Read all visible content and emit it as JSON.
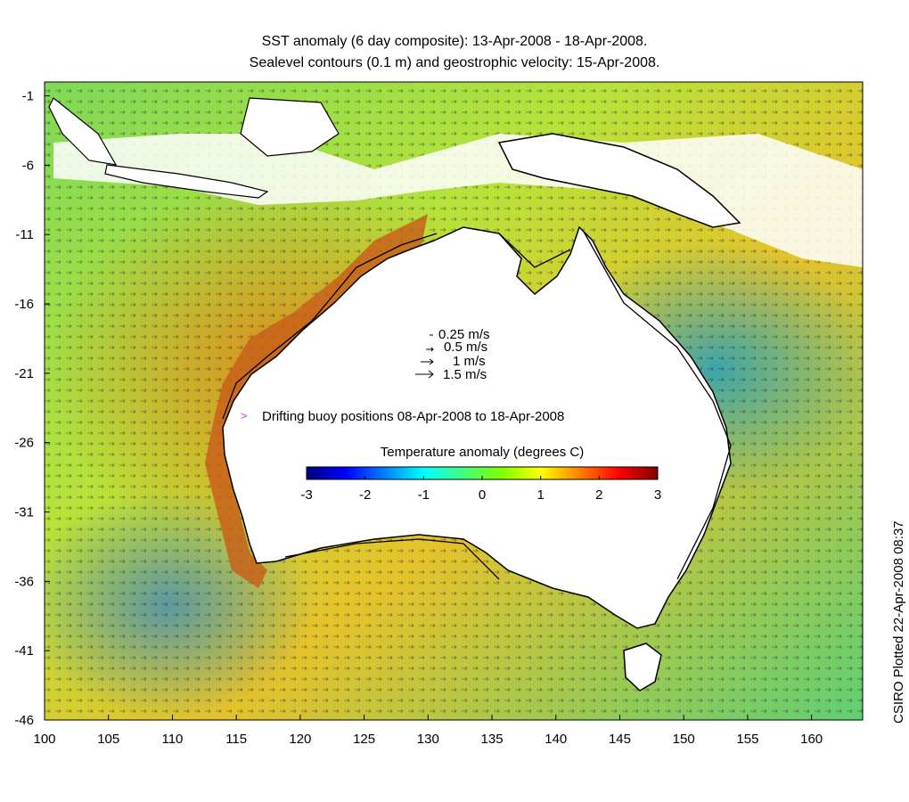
{
  "title": {
    "line1": "SST anomaly (6 day composite): 13-Apr-2008 - 18-Apr-2008.",
    "line2": "Sealevel contours (0.1 m) and geostrophic velocity: 15-Apr-2008."
  },
  "axes": {
    "x_ticks": [
      "100",
      "105",
      "110",
      "115",
      "120",
      "125",
      "130",
      "135",
      "140",
      "145",
      "150",
      "155",
      "160"
    ],
    "y_ticks": [
      "-1",
      "-6",
      "-11",
      "-16",
      "-21",
      "-26",
      "-31",
      "-36",
      "-41",
      "-46"
    ],
    "x_range": [
      100,
      164
    ],
    "y_range": [
      -46,
      0
    ]
  },
  "velocity_legend": [
    {
      "label": "0.25 m/s"
    },
    {
      "label": "0.5 m/s"
    },
    {
      "label": "1 m/s"
    },
    {
      "label": "1.5 m/s"
    }
  ],
  "buoy_legend": {
    "marker": ">",
    "label": "Drifting buoy positions 08-Apr-2008 to 18-Apr-2008",
    "color": "#e040e0"
  },
  "colorbar": {
    "title": "Temperature anomaly (degrees C)",
    "ticks": [
      "-3",
      "-2",
      "-1",
      "0",
      "1",
      "2",
      "3"
    ],
    "range": [
      -3,
      3
    ],
    "colors": [
      "#00007f",
      "#0000ff",
      "#0080ff",
      "#00ffff",
      "#40ff80",
      "#80ff00",
      "#ffff00",
      "#ff8000",
      "#ff0000",
      "#800000"
    ]
  },
  "credit": "CSIRO Plotted 22-Apr-2008 08:37"
}
